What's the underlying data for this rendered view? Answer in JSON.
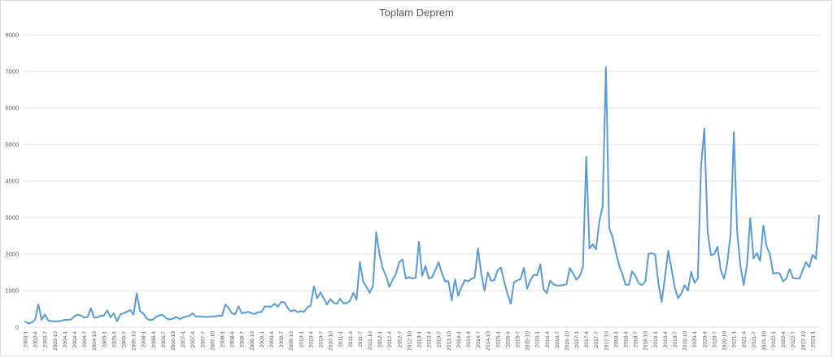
{
  "chart_data": {
    "type": "line",
    "title": "Toplam Deprem",
    "xlabel": "",
    "ylabel": "",
    "ylim": [
      0,
      8000
    ],
    "yticks": [
      0,
      1000,
      2000,
      3000,
      4000,
      5000,
      6000,
      7000,
      8000
    ],
    "grid": true,
    "legend": "none",
    "line_color": "#5B9BD5",
    "x_tick_labels": [
      "2003-1",
      "2003-4",
      "2003-7",
      "2003-10",
      "2004-1",
      "2004-4",
      "2004-7",
      "2004-10",
      "2005-1",
      "2005-4",
      "2005-7",
      "2005-10",
      "2006-1",
      "2006-4",
      "2006-7",
      "2006-10",
      "2007-1",
      "2007-4",
      "2007-7",
      "2007-10",
      "2008-1",
      "2008-4",
      "2008-7",
      "2008-10",
      "2009-1",
      "2009-4",
      "2009-7",
      "2009-10",
      "2010-1",
      "2010-4",
      "2010-7",
      "2010-10",
      "2011-1",
      "2011-4",
      "2011-7",
      "2011-10",
      "2012-1",
      "2012-4",
      "2012-7",
      "2012-10",
      "2013-1",
      "2013-4",
      "2013-7",
      "2013-10",
      "2014-1",
      "2014-4",
      "2014-7",
      "2014-10",
      "2015-1",
      "2015-4",
      "2015-7",
      "2015-10",
      "2016-1",
      "2016-4",
      "2016-7",
      "2016-10",
      "2017-1",
      "2017-4",
      "2017-7",
      "2017-10",
      "2018-1",
      "2018-4",
      "2018-7",
      "2018-10",
      "2019-1",
      "2019-4",
      "2019-7",
      "2019-10",
      "2020-1",
      "2020-4",
      "2020-7",
      "2020-10",
      "2021-1",
      "2021-4",
      "2021-7",
      "2021-10",
      "2022-1",
      "2022-4",
      "2022-7",
      "2022-10",
      "2023-1"
    ],
    "series": [
      {
        "start": "2003-1",
        "frequency": "monthly",
        "values": [
          150,
          100,
          130,
          200,
          620,
          200,
          350,
          180,
          160,
          160,
          160,
          170,
          200,
          200,
          210,
          300,
          340,
          320,
          260,
          280,
          520,
          260,
          270,
          310,
          320,
          460,
          270,
          380,
          160,
          350,
          380,
          420,
          470,
          340,
          920,
          440,
          370,
          240,
          190,
          210,
          290,
          330,
          330,
          240,
          210,
          230,
          280,
          220,
          260,
          290,
          310,
          380,
          290,
          300,
          290,
          280,
          280,
          300,
          290,
          320,
          310,
          620,
          520,
          380,
          350,
          570,
          380,
          400,
          420,
          380,
          360,
          410,
          410,
          570,
          560,
          560,
          640,
          560,
          690,
          680,
          520,
          430,
          470,
          410,
          440,
          420,
          540,
          590,
          1120,
          790,
          950,
          790,
          620,
          770,
          670,
          640,
          780,
          650,
          660,
          720,
          940,
          750,
          1780,
          1250,
          1100,
          940,
          1120,
          2600,
          2000,
          1600,
          1400,
          1100,
          1300,
          1460,
          1780,
          1850,
          1330,
          1370,
          1330,
          1350,
          2340,
          1400,
          1680,
          1330,
          1370,
          1560,
          1780,
          1480,
          1250,
          1260,
          730,
          1310,
          860,
          1100,
          1290,
          1250,
          1320,
          1360,
          2160,
          1470,
          1000,
          1500,
          1270,
          1290,
          1560,
          1630,
          1250,
          910,
          640,
          1230,
          1280,
          1320,
          1620,
          1050,
          1290,
          1430,
          1420,
          1720,
          1040,
          930,
          1270,
          1170,
          1140,
          1140,
          1150,
          1180,
          1620,
          1470,
          1300,
          1390,
          1640,
          4660,
          2150,
          2270,
          2130,
          2900,
          3300,
          7120,
          2720,
          2470,
          2070,
          1700,
          1460,
          1160,
          1160,
          1530,
          1400,
          1200,
          1150,
          1250,
          2010,
          2020,
          1990,
          1200,
          690,
          1380,
          2090,
          1590,
          1080,
          790,
          920,
          1150,
          1000,
          1520,
          1210,
          1330,
          4390,
          5440,
          2630,
          1970,
          2000,
          2200,
          1560,
          1320,
          1760,
          2550,
          5340,
          2600,
          1690,
          1150,
          1710,
          2980,
          1880,
          2030,
          1810,
          2780,
          2200,
          2000,
          1460,
          1490,
          1470,
          1250,
          1330,
          1590,
          1350,
          1330,
          1330,
          1560,
          1780,
          1640,
          1980,
          1870,
          3050
        ]
      }
    ]
  }
}
